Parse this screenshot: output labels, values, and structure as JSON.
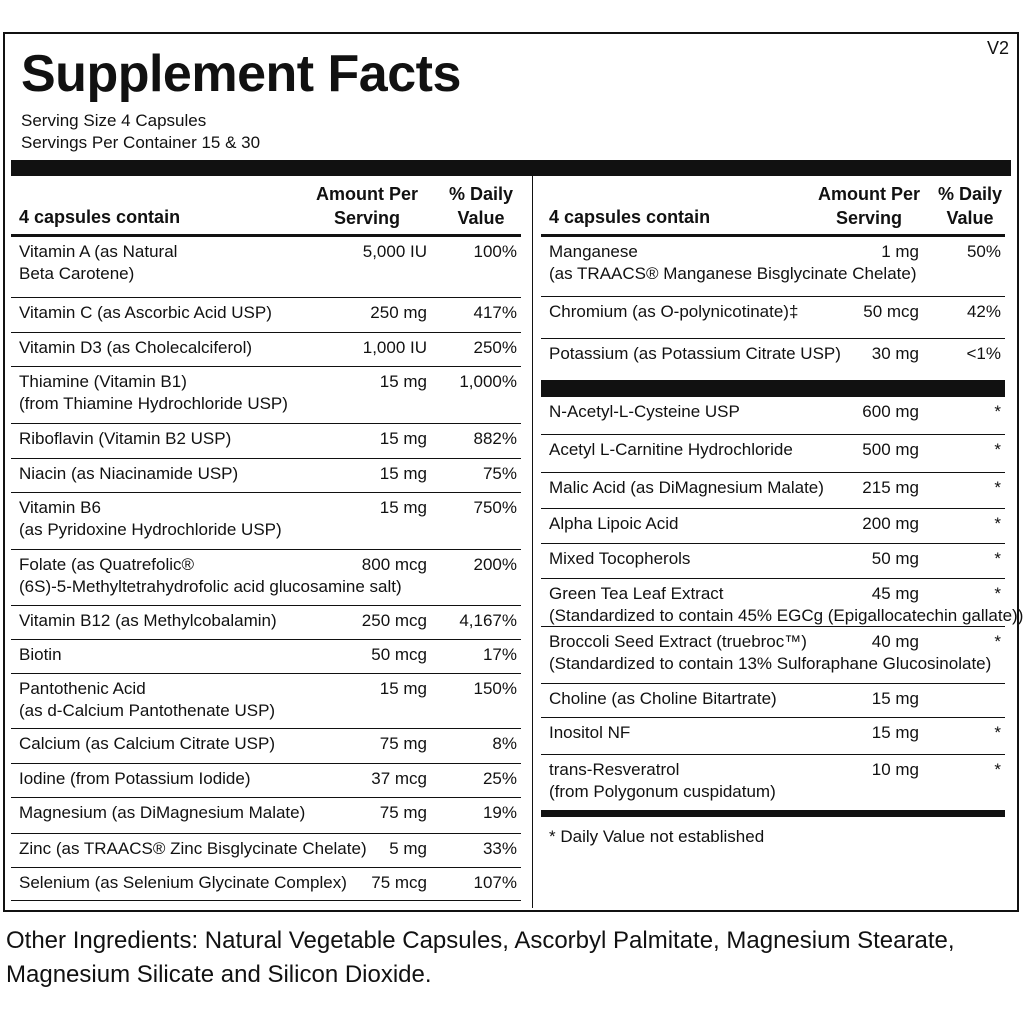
{
  "version": "V2",
  "title": "Supplement Facts",
  "serving_size": "Serving Size  4 Capsules",
  "servings_per_container": "Servings Per Container  15 & 30",
  "headers": {
    "name": "4 capsules contain",
    "amount_line1": "Amount Per",
    "amount_line2": "Serving",
    "dv_line1": "% Daily",
    "dv_line2": "Value"
  },
  "left_rows": [
    {
      "l1": "Vitamin A (as Natural",
      "l2": "Beta Carotene)",
      "amount": "5,000 IU",
      "dv": "100%"
    },
    {
      "l1": "Vitamin C (as Ascorbic Acid USP)",
      "l2": "",
      "amount": "250 mg",
      "dv": "417%"
    },
    {
      "l1": "Vitamin D3 (as Cholecalciferol)",
      "l2": "",
      "amount": "1,000 IU",
      "dv": "250%"
    },
    {
      "l1": "Thiamine (Vitamin B1)",
      "l2": "(from Thiamine Hydrochloride USP)",
      "amount": "15 mg",
      "dv": "1,000%"
    },
    {
      "l1": "Riboflavin (Vitamin B2 USP)",
      "l2": "",
      "amount": "15 mg",
      "dv": "882%"
    },
    {
      "l1": "Niacin (as Niacinamide USP)",
      "l2": "",
      "amount": "15 mg",
      "dv": "75%"
    },
    {
      "l1": "Vitamin B6",
      "l2": "(as Pyridoxine Hydrochloride USP)",
      "amount": "15 mg",
      "dv": "750%"
    },
    {
      "l1": "Folate (as Quatrefolic®",
      "l2": "(6S)-5-Methyltetrahydrofolic acid glucosamine salt)",
      "amount": "800 mcg",
      "dv": "200%"
    },
    {
      "l1": "Vitamin B12 (as Methylcobalamin)",
      "l2": "",
      "amount": "250 mcg",
      "dv": "4,167%"
    },
    {
      "l1": "Biotin",
      "l2": "",
      "amount": "50 mcg",
      "dv": "17%"
    },
    {
      "l1": "Pantothenic Acid",
      "l2": "(as d-Calcium Pantothenate USP)",
      "amount": "15 mg",
      "dv": "150%"
    },
    {
      "l1": "Calcium (as Calcium Citrate USP)",
      "l2": "",
      "amount": "75 mg",
      "dv": "8%"
    },
    {
      "l1": "Iodine (from Potassium Iodide)",
      "l2": "",
      "amount": "37 mcg",
      "dv": "25%"
    },
    {
      "l1": "Magnesium (as DiMagnesium Malate)",
      "l2": "",
      "amount": "75 mg",
      "dv": "19%"
    },
    {
      "l1": "Zinc (as TRAACS® Zinc Bisglycinate Chelate)",
      "l2": "",
      "amount": "5 mg",
      "dv": "33%"
    },
    {
      "l1": "Selenium (as Selenium Glycinate Complex)",
      "l2": "",
      "amount": "75 mcg",
      "dv": "107%"
    }
  ],
  "right_rows_top": [
    {
      "l1": "Manganese",
      "l2": "(as TRAACS® Manganese Bisglycinate Chelate)",
      "amount": "1 mg",
      "dv": "50%"
    },
    {
      "l1": "Chromium (as O-polynicotinate)‡",
      "l2": "",
      "amount": "50 mcg",
      "dv": "42%"
    },
    {
      "l1": "Potassium (as Potassium Citrate USP)",
      "l2": "",
      "amount": "30 mg",
      "dv": "<1%"
    }
  ],
  "right_rows_bottom": [
    {
      "l1": "N-Acetyl-L-Cysteine USP",
      "l2": "",
      "amount": "600 mg",
      "dv": "*"
    },
    {
      "l1": "Acetyl L-Carnitine Hydrochloride",
      "l2": "",
      "amount": "500 mg",
      "dv": "*"
    },
    {
      "l1": "Malic Acid (as DiMagnesium Malate)",
      "l2": "",
      "amount": "215 mg",
      "dv": "*"
    },
    {
      "l1": "Alpha Lipoic Acid",
      "l2": "",
      "amount": "200 mg",
      "dv": "*"
    },
    {
      "l1": "Mixed Tocopherols",
      "l2": "",
      "amount": "50 mg",
      "dv": "*"
    },
    {
      "l1": "Green Tea Leaf Extract",
      "l2": "(Standardized to contain 45% EGCg (Epigallocatechin gallate))",
      "amount": "45 mg",
      "dv": "*"
    },
    {
      "l1": "Broccoli Seed Extract (truebroc™)",
      "l2": "(Standardized to contain 13% Sulforaphane Glucosinolate)",
      "amount": "40 mg",
      "dv": "*"
    },
    {
      "l1": "Choline (as Choline Bitartrate)",
      "l2": "",
      "amount": "15 mg",
      "dv": ""
    },
    {
      "l1": "Inositol NF",
      "l2": "",
      "amount": "15 mg",
      "dv": "*"
    },
    {
      "l1": "trans-Resveratrol",
      "l2": "(from Polygonum cuspidatum)",
      "amount": "10 mg",
      "dv": "*"
    }
  ],
  "footnote": "*  Daily Value not established",
  "other_ingredients": "Other Ingredients: Natural Vegetable Capsules, Ascorbyl Palmitate, Magnesium Stearate, Magnesium Silicate and Silicon Dioxide."
}
